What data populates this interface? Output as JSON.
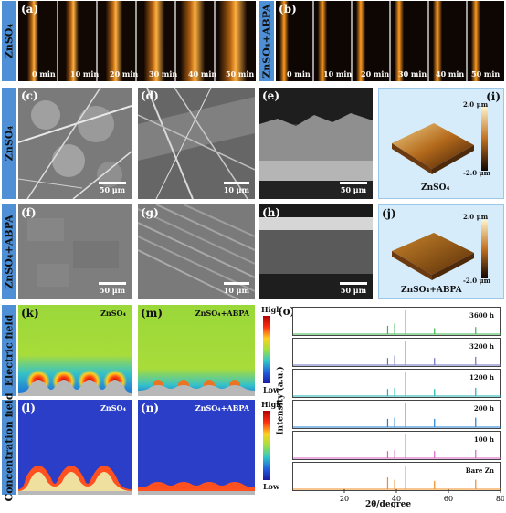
{
  "panels": {
    "a": "(a)",
    "b": "(b)",
    "c": "(c)",
    "d": "(d)",
    "e": "(e)",
    "f": "(f)",
    "g": "(g)",
    "h": "(h)",
    "i": "(i)",
    "j": "(j)",
    "k": "(k)",
    "l": "(l)",
    "m": "(m)",
    "n": "(n)",
    "o": "(o)"
  },
  "side_labels": {
    "row1_left": "ZnSO₄",
    "row1_right": "ZnSO₄+ABPA",
    "row2": "ZnSO₄",
    "row3": "ZnSO₄+ABPA",
    "row4": "Electric field",
    "row5": "Concentration field"
  },
  "time_labels": [
    "0 min",
    "10 min",
    "20 min",
    "30 min",
    "40 min",
    "50 min"
  ],
  "scale_bars": {
    "c": "50 μm",
    "d": "10 μm",
    "e": "50 μm",
    "f": "50 μm",
    "g": "10 μm",
    "h": "50 μm"
  },
  "afm": {
    "i_top": "2.0 μm",
    "i_bottom": "-2.0 μm",
    "i_caption": "ZnSO₄",
    "j_top": "2.0 μm",
    "j_bottom": "-2.0 μm",
    "j_caption": "ZnSO₄+ABPA"
  },
  "sim": {
    "k_title": "ZnSO₄",
    "m_title": "ZnSO₄+ABPA",
    "l_title": "ZnSO₄",
    "n_title": "ZnSO₄+ABPA",
    "cb1_high": "High",
    "cb1_low": "Low",
    "cb2_high": "High",
    "cb2_low": "Low"
  },
  "colors": {
    "accent_blue": "#4e8fd6",
    "background": "#ffffff"
  },
  "chart_data": {
    "type": "line",
    "title": "",
    "xlabel": "2θ/degree",
    "ylabel": "Intensity (a.u.)",
    "xlim": [
      0,
      80
    ],
    "x_ticks": [
      20,
      40,
      60,
      80
    ],
    "grid": false,
    "series": [
      {
        "name": "3600 h",
        "color": "#3cb44b",
        "peaks": [
          [
            36.3,
            0.35
          ],
          [
            39.0,
            0.45
          ],
          [
            43.2,
            1.0
          ],
          [
            54.3,
            0.25
          ],
          [
            70.1,
            0.3
          ]
        ]
      },
      {
        "name": "3200 h",
        "color": "#6a6fc0",
        "peaks": [
          [
            36.3,
            0.3
          ],
          [
            39.0,
            0.4
          ],
          [
            43.2,
            1.0
          ],
          [
            54.3,
            0.3
          ],
          [
            70.1,
            0.35
          ]
        ]
      },
      {
        "name": "1200 h",
        "color": "#19b4b4",
        "peaks": [
          [
            36.3,
            0.3
          ],
          [
            39.0,
            0.35
          ],
          [
            43.2,
            1.0
          ],
          [
            54.3,
            0.3
          ],
          [
            70.1,
            0.35
          ]
        ]
      },
      {
        "name": "200 h",
        "color": "#1e7fd6",
        "peaks": [
          [
            36.3,
            0.35
          ],
          [
            39.0,
            0.4
          ],
          [
            43.2,
            1.0
          ],
          [
            54.3,
            0.35
          ],
          [
            70.1,
            0.4
          ]
        ]
      },
      {
        "name": "100 h",
        "color": "#d960c0",
        "peaks": [
          [
            36.3,
            0.3
          ],
          [
            39.0,
            0.35
          ],
          [
            43.2,
            1.0
          ],
          [
            54.3,
            0.3
          ],
          [
            70.1,
            0.35
          ]
        ]
      },
      {
        "name": "Bare Zn",
        "color": "#f08c20",
        "peaks": [
          [
            36.3,
            0.5
          ],
          [
            39.0,
            0.4
          ],
          [
            43.2,
            1.0
          ],
          [
            54.3,
            0.35
          ],
          [
            70.1,
            0.4
          ]
        ]
      }
    ]
  }
}
